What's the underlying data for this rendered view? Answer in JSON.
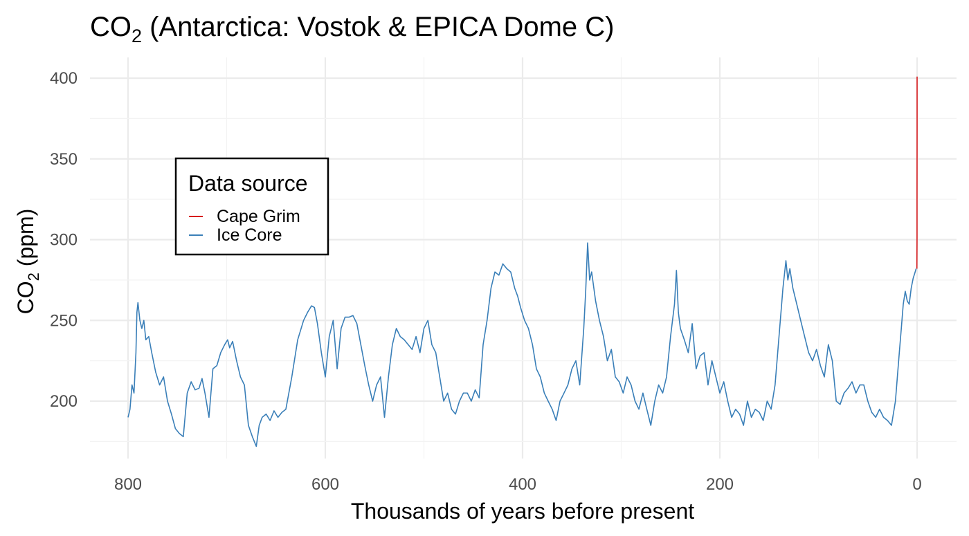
{
  "chart_data": {
    "type": "line",
    "title": {
      "main": "CO",
      "sub": "2",
      "rest": " (Antarctica: Vostok & EPICA Dome C)"
    },
    "xlabel": "Thousands of years before present",
    "ylabel": {
      "main": "CO",
      "sub": "2",
      "rest": " (ppm)"
    },
    "xlim": [
      820,
      -10
    ],
    "x_reversed": true,
    "ylim": [
      163,
      408
    ],
    "x_ticks": [
      800,
      600,
      400,
      200,
      0
    ],
    "x_tick_labels": [
      "800",
      "600",
      "400",
      "200",
      "0"
    ],
    "y_ticks": [
      200,
      250,
      300,
      350,
      400
    ],
    "y_tick_labels": [
      "200",
      "250",
      "300",
      "350",
      "400"
    ],
    "grid": true,
    "legend": {
      "title": "Data source",
      "placement": "top-left",
      "entries": [
        {
          "label": "Cape Grim",
          "color": "#d7191c"
        },
        {
          "label": "Ice Core",
          "color": "#3a7fb8"
        }
      ]
    },
    "series": [
      {
        "name": "Ice Core",
        "color": "#3a7fb8",
        "x": [
          800,
          798,
          796,
          794,
          792,
          791,
          790,
          788,
          786,
          784,
          782,
          779,
          776,
          772,
          768,
          764,
          760,
          756,
          752,
          748,
          744,
          740,
          736,
          732,
          728,
          725,
          722,
          718,
          714,
          710,
          706,
          702,
          699,
          697,
          694,
          690,
          686,
          682,
          678,
          674,
          670,
          667,
          664,
          660,
          656,
          652,
          648,
          644,
          640,
          634,
          628,
          622,
          618,
          614,
          611,
          608,
          604,
          600,
          596,
          592,
          588,
          584,
          580,
          576,
          572,
          568,
          564,
          560,
          556,
          552,
          548,
          544,
          540,
          536,
          532,
          528,
          524,
          520,
          516,
          512,
          508,
          504,
          500,
          496,
          492,
          488,
          484,
          480,
          476,
          472,
          468,
          464,
          460,
          456,
          452,
          448,
          444,
          440,
          436,
          432,
          428,
          424,
          420,
          416,
          412,
          408,
          405,
          402,
          398,
          394,
          390,
          386,
          382,
          378,
          374,
          370,
          366,
          362,
          358,
          354,
          350,
          346,
          342,
          338,
          336,
          334,
          332,
          330,
          326,
          322,
          318,
          314,
          310,
          306,
          302,
          298,
          294,
          290,
          286,
          282,
          278,
          274,
          270,
          266,
          262,
          258,
          254,
          250,
          246,
          244,
          242,
          240,
          236,
          232,
          228,
          224,
          220,
          216,
          212,
          208,
          204,
          200,
          196,
          192,
          188,
          184,
          180,
          176,
          172,
          168,
          164,
          160,
          156,
          152,
          148,
          144,
          140,
          136,
          133,
          131,
          129,
          126,
          122,
          118,
          114,
          110,
          106,
          102,
          98,
          94,
          90,
          86,
          82,
          78,
          74,
          70,
          66,
          62,
          58,
          54,
          50,
          46,
          42,
          38,
          34,
          30,
          26,
          22,
          20,
          18,
          16,
          14,
          12,
          10,
          8,
          6,
          4,
          2,
          1
        ],
        "values": [
          190,
          195,
          210,
          205,
          230,
          255,
          261,
          250,
          245,
          250,
          238,
          240,
          230,
          218,
          210,
          215,
          200,
          192,
          183,
          180,
          178,
          205,
          212,
          207,
          208,
          214,
          205,
          190,
          220,
          222,
          230,
          235,
          238,
          233,
          237,
          225,
          215,
          210,
          185,
          178,
          172,
          185,
          190,
          192,
          188,
          194,
          190,
          193,
          195,
          215,
          238,
          250,
          255,
          259,
          258,
          248,
          230,
          215,
          240,
          250,
          220,
          245,
          252,
          252,
          253,
          248,
          235,
          222,
          210,
          200,
          210,
          215,
          190,
          215,
          235,
          245,
          240,
          238,
          235,
          232,
          240,
          230,
          245,
          250,
          235,
          230,
          215,
          200,
          205,
          195,
          192,
          200,
          205,
          205,
          200,
          207,
          202,
          235,
          250,
          270,
          280,
          278,
          285,
          282,
          280,
          270,
          265,
          258,
          250,
          245,
          235,
          220,
          215,
          205,
          200,
          195,
          188,
          200,
          205,
          210,
          220,
          225,
          210,
          245,
          268,
          298,
          275,
          280,
          262,
          250,
          240,
          225,
          232,
          215,
          212,
          205,
          215,
          210,
          200,
          195,
          205,
          195,
          185,
          200,
          210,
          205,
          215,
          240,
          260,
          281,
          255,
          245,
          238,
          230,
          248,
          220,
          228,
          230,
          210,
          225,
          215,
          205,
          212,
          200,
          190,
          195,
          192,
          185,
          200,
          190,
          195,
          193,
          188,
          200,
          195,
          210,
          240,
          270,
          287,
          275,
          282,
          270,
          260,
          250,
          240,
          230,
          225,
          232,
          222,
          215,
          235,
          225,
          200,
          198,
          205,
          208,
          212,
          205,
          210,
          210,
          200,
          193,
          190,
          195,
          190,
          188,
          185,
          200,
          215,
          230,
          245,
          260,
          268,
          262,
          260,
          270,
          276,
          280,
          282
        ]
      },
      {
        "name": "Cape Grim",
        "color": "#d7191c",
        "x": [
          0.2,
          0.1,
          0.05,
          0.02,
          0
        ],
        "values": [
          282,
          300,
          330,
          370,
          401
        ]
      }
    ]
  }
}
